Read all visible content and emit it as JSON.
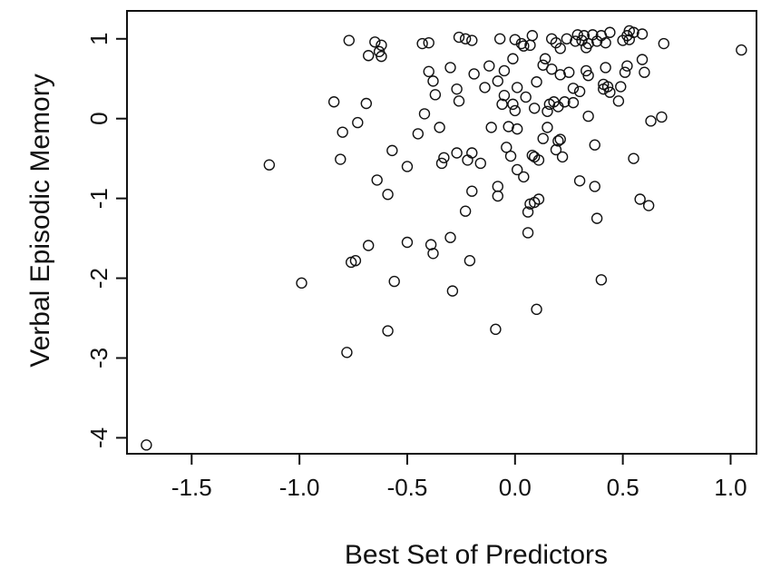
{
  "chart_data": {
    "type": "scatter",
    "title": "",
    "xlabel": "Best Set of Predictors",
    "ylabel": "Verbal Episodic Memory",
    "xlim": [
      -1.8,
      1.12
    ],
    "ylim": [
      -4.2,
      1.35
    ],
    "xticks": [
      -1.5,
      -1.0,
      -0.5,
      0.0,
      0.5,
      1.0
    ],
    "xtick_labels": [
      "-1.5",
      "-1.0",
      "-0.5",
      "0.0",
      "0.5",
      "1.0"
    ],
    "yticks": [
      -4,
      -3,
      -2,
      -1,
      0,
      1
    ],
    "ytick_labels": [
      "-4",
      "-3",
      "-2",
      "-1",
      "0",
      "1"
    ],
    "marker": "open-circle",
    "grid": false,
    "legend": "none",
    "points": [
      [
        -1.71,
        -4.09
      ],
      [
        -1.14,
        -0.58
      ],
      [
        -0.99,
        -2.06
      ],
      [
        -0.84,
        0.21
      ],
      [
        -0.81,
        -0.51
      ],
      [
        -0.8,
        -0.17
      ],
      [
        -0.78,
        -2.93
      ],
      [
        -0.77,
        0.98
      ],
      [
        -0.76,
        -1.8
      ],
      [
        -0.74,
        -1.78
      ],
      [
        -0.73,
        -0.05
      ],
      [
        -0.69,
        0.19
      ],
      [
        -0.68,
        -1.59
      ],
      [
        -0.68,
        0.79
      ],
      [
        -0.65,
        0.96
      ],
      [
        -0.64,
        -0.77
      ],
      [
        -0.63,
        0.84
      ],
      [
        -0.62,
        0.92
      ],
      [
        -0.62,
        0.78
      ],
      [
        -0.59,
        -0.95
      ],
      [
        -0.59,
        -2.66
      ],
      [
        -0.57,
        -0.4
      ],
      [
        -0.56,
        -2.04
      ],
      [
        -0.5,
        -0.6
      ],
      [
        -0.5,
        -1.55
      ],
      [
        -0.45,
        -0.19
      ],
      [
        -0.43,
        0.94
      ],
      [
        -0.42,
        0.06
      ],
      [
        -0.4,
        0.95
      ],
      [
        -0.4,
        0.59
      ],
      [
        -0.39,
        -1.58
      ],
      [
        -0.38,
        -1.69
      ],
      [
        -0.38,
        0.47
      ],
      [
        -0.37,
        0.3
      ],
      [
        -0.35,
        -0.11
      ],
      [
        -0.34,
        -0.56
      ],
      [
        -0.33,
        -0.49
      ],
      [
        -0.3,
        -1.49
      ],
      [
        -0.3,
        0.64
      ],
      [
        -0.29,
        -2.16
      ],
      [
        -0.27,
        -0.43
      ],
      [
        -0.27,
        0.37
      ],
      [
        -0.26,
        0.22
      ],
      [
        -0.26,
        1.02
      ],
      [
        -0.23,
        1.0
      ],
      [
        -0.23,
        -1.16
      ],
      [
        -0.22,
        -0.52
      ],
      [
        -0.21,
        -1.78
      ],
      [
        -0.2,
        -0.43
      ],
      [
        -0.2,
        0.98
      ],
      [
        -0.2,
        -0.91
      ],
      [
        -0.19,
        0.56
      ],
      [
        -0.16,
        -0.56
      ],
      [
        -0.14,
        0.39
      ],
      [
        -0.12,
        0.66
      ],
      [
        -0.11,
        -0.11
      ],
      [
        -0.09,
        -2.64
      ],
      [
        -0.08,
        -0.85
      ],
      [
        -0.08,
        -0.97
      ],
      [
        -0.08,
        0.47
      ],
      [
        -0.07,
        1.0
      ],
      [
        -0.06,
        0.18
      ],
      [
        -0.05,
        0.6
      ],
      [
        -0.05,
        0.29
      ],
      [
        -0.04,
        -0.36
      ],
      [
        -0.03,
        -0.1
      ],
      [
        -0.02,
        -0.47
      ],
      [
        -0.01,
        0.18
      ],
      [
        -0.01,
        0.75
      ],
      [
        0.0,
        0.99
      ],
      [
        0.0,
        0.1
      ],
      [
        0.01,
        -0.64
      ],
      [
        0.01,
        0.39
      ],
      [
        0.01,
        -0.13
      ],
      [
        0.03,
        0.94
      ],
      [
        0.04,
        0.91
      ],
      [
        0.04,
        -0.73
      ],
      [
        0.05,
        0.27
      ],
      [
        0.06,
        -1.43
      ],
      [
        0.06,
        -1.17
      ],
      [
        0.07,
        0.92
      ],
      [
        0.07,
        -1.07
      ],
      [
        0.08,
        1.04
      ],
      [
        0.08,
        -0.46
      ],
      [
        0.09,
        0.13
      ],
      [
        0.09,
        -0.48
      ],
      [
        0.09,
        -1.05
      ],
      [
        0.1,
        0.46
      ],
      [
        0.1,
        -2.39
      ],
      [
        0.11,
        -1.01
      ],
      [
        0.11,
        -0.52
      ],
      [
        0.13,
        -0.25
      ],
      [
        0.13,
        0.67
      ],
      [
        0.14,
        0.75
      ],
      [
        0.15,
        -0.11
      ],
      [
        0.15,
        0.09
      ],
      [
        0.16,
        0.18
      ],
      [
        0.17,
        1.0
      ],
      [
        0.17,
        0.62
      ],
      [
        0.18,
        0.21
      ],
      [
        0.19,
        0.95
      ],
      [
        0.19,
        -0.39
      ],
      [
        0.2,
        0.15
      ],
      [
        0.2,
        -0.28
      ],
      [
        0.21,
        0.55
      ],
      [
        0.21,
        -0.26
      ],
      [
        0.21,
        0.88
      ],
      [
        0.22,
        -0.48
      ],
      [
        0.23,
        0.21
      ],
      [
        0.24,
        1.0
      ],
      [
        0.25,
        0.58
      ],
      [
        0.27,
        0.38
      ],
      [
        0.27,
        0.2
      ],
      [
        0.28,
        0.97
      ],
      [
        0.29,
        1.05
      ],
      [
        0.3,
        -0.78
      ],
      [
        0.3,
        0.34
      ],
      [
        0.31,
        0.98
      ],
      [
        0.32,
        1.04
      ],
      [
        0.33,
        0.89
      ],
      [
        0.33,
        0.6
      ],
      [
        0.34,
        0.54
      ],
      [
        0.34,
        0.03
      ],
      [
        0.34,
        0.94
      ],
      [
        0.36,
        1.05
      ],
      [
        0.37,
        -0.85
      ],
      [
        0.37,
        -0.33
      ],
      [
        0.38,
        -1.25
      ],
      [
        0.38,
        0.97
      ],
      [
        0.4,
        1.04
      ],
      [
        0.4,
        -2.02
      ],
      [
        0.41,
        0.43
      ],
      [
        0.41,
        0.37
      ],
      [
        0.42,
        0.95
      ],
      [
        0.42,
        0.64
      ],
      [
        0.43,
        0.4
      ],
      [
        0.44,
        1.08
      ],
      [
        0.44,
        0.33
      ],
      [
        0.48,
        0.22
      ],
      [
        0.49,
        0.4
      ],
      [
        0.5,
        0.98
      ],
      [
        0.51,
        0.58
      ],
      [
        0.52,
        1.04
      ],
      [
        0.52,
        0.66
      ],
      [
        0.53,
        1.1
      ],
      [
        0.53,
        0.99
      ],
      [
        0.55,
        -0.5
      ],
      [
        0.55,
        1.08
      ],
      [
        0.58,
        -1.01
      ],
      [
        0.59,
        0.74
      ],
      [
        0.59,
        1.06
      ],
      [
        0.6,
        0.58
      ],
      [
        0.62,
        -1.09
      ],
      [
        0.63,
        -0.03
      ],
      [
        0.68,
        0.02
      ],
      [
        0.69,
        0.94
      ],
      [
        1.05,
        0.86
      ]
    ]
  }
}
